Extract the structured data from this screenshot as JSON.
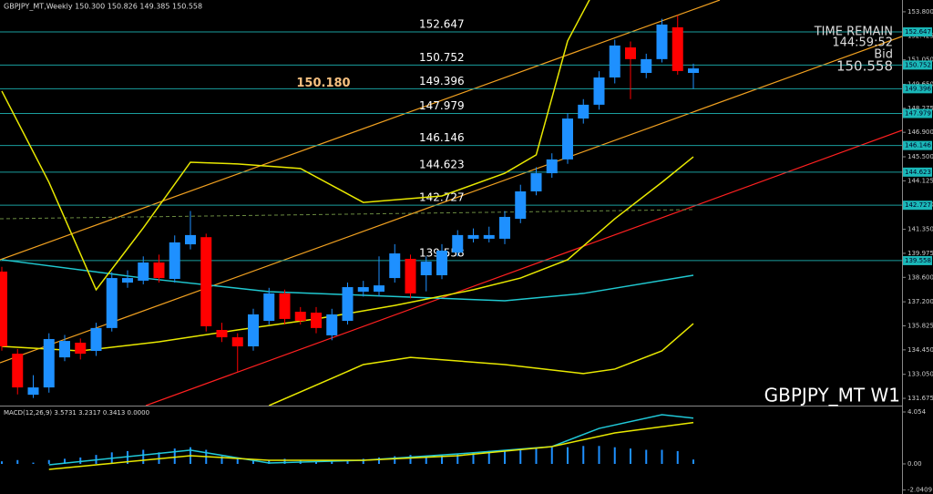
{
  "chart_data": [
    {
      "type": "candlestick",
      "title": "GBPJPY_MT,Weekly 150.300 150.826 149.385 150.558",
      "watermark": "GBPJPY_MT W1",
      "info": [
        "TIME REMAIN",
        "144:59:52",
        "Bid"
      ],
      "bid": 150.558,
      "up_color": "#1e90ff",
      "down_color": "#ff0000",
      "level_color": "#1a9e9e",
      "open": [
        138.93,
        134.23,
        131.88,
        132.3,
        134.02,
        134.86,
        134.39,
        135.7,
        138.3,
        138.41,
        139.45,
        138.51,
        140.49,
        140.9,
        135.59,
        135.17,
        134.65,
        136.11,
        137.68,
        136.63,
        136.58,
        135.28,
        136.11,
        137.78,
        137.78,
        138.56,
        139.66,
        138.72,
        138.72,
        140.02,
        140.81,
        140.81,
        140.81,
        141.95,
        143.52,
        144.56,
        145.35,
        147.69,
        148.48,
        150.04,
        151.76,
        150.3,
        151.09,
        152.91,
        150.3
      ],
      "high": [
        139.2,
        134.5,
        133.0,
        135.4,
        135.3,
        135.1,
        136.0,
        138.9,
        139.0,
        139.8,
        139.9,
        141.0,
        142.4,
        141.1,
        136.0,
        135.4,
        136.8,
        138.0,
        137.9,
        136.9,
        136.9,
        136.8,
        138.3,
        138.4,
        139.8,
        140.5,
        139.9,
        139.8,
        140.5,
        141.3,
        141.4,
        141.5,
        142.4,
        143.9,
        144.9,
        145.7,
        148.0,
        148.8,
        150.4,
        152.2,
        152.1,
        151.4,
        153.4,
        153.6,
        150.826
      ],
      "low": [
        134.4,
        131.9,
        131.7,
        132.0,
        133.8,
        133.9,
        134.1,
        135.5,
        138.0,
        138.2,
        138.3,
        138.3,
        140.2,
        135.5,
        134.9,
        133.2,
        134.4,
        135.9,
        135.9,
        135.9,
        135.4,
        135.0,
        135.9,
        137.5,
        137.5,
        138.3,
        137.4,
        137.8,
        138.5,
        139.8,
        140.6,
        140.6,
        140.5,
        141.7,
        143.3,
        144.3,
        145.1,
        147.4,
        148.2,
        149.7,
        148.8,
        150.0,
        150.9,
        150.2,
        149.385
      ],
      "close": [
        134.65,
        132.3,
        132.3,
        135.07,
        134.96,
        134.23,
        135.7,
        138.56,
        138.56,
        139.45,
        138.56,
        140.6,
        141.02,
        135.8,
        135.17,
        134.65,
        136.48,
        137.68,
        136.22,
        136.11,
        135.7,
        136.48,
        138.04,
        138.04,
        138.14,
        139.97,
        137.68,
        139.5,
        140.13,
        141.02,
        141.02,
        141.02,
        142.06,
        143.52,
        144.56,
        145.35,
        147.69,
        148.48,
        150.04,
        151.87,
        151.09,
        151.09,
        153.07,
        150.41,
        150.558
      ],
      "levels": [
        152.647,
        150.752,
        149.396,
        147.979,
        146.146,
        144.623,
        142.727,
        139.558
      ],
      "annotation": {
        "value": 150.18,
        "label": "150.180"
      },
      "overlays": [
        {
          "color": "#20c8d0",
          "x": [
            0,
            9,
            17,
            26,
            32,
            37,
            44
          ],
          "values": [
            139.61,
            138.56,
            137.78,
            137.47,
            137.26,
            137.68,
            138.72
          ]
        },
        {
          "color": "#e8e800",
          "x": [
            0,
            5,
            10,
            15,
            20,
            25,
            30,
            33,
            36,
            39,
            42,
            44
          ],
          "values": [
            134.65,
            134.39,
            134.91,
            135.59,
            136.22,
            136.99,
            137.89,
            138.56,
            139.61,
            141.95,
            144.04,
            145.5
          ]
        },
        {
          "color": "#e8e800",
          "x": [
            0,
            3,
            6,
            9,
            12,
            15,
            19,
            23,
            28,
            32,
            34,
            36,
            38
          ],
          "values": [
            149.26,
            144.04,
            137.89,
            141.43,
            145.19,
            145.09,
            144.83,
            142.89,
            143.26,
            144.56,
            145.61,
            152.13,
            155.52
          ]
        },
        {
          "color": "#e8e800",
          "x": [
            17,
            21,
            23,
            26,
            32,
            37,
            39,
            42,
            44
          ],
          "values": [
            131.26,
            132.82,
            133.61,
            134.02,
            133.61,
            133.09,
            133.35,
            134.39,
            135.95
          ]
        }
      ],
      "ylim": [
        131.26,
        154.37
      ],
      "yticks": [
        {
          "value": 153.8,
          "label": "153.800"
        },
        152.425,
        {
          "value": 151.05,
          "label": "151.050"
        },
        {
          "value": 149.65,
          "label": "149.650"
        },
        148.275,
        {
          "value": 146.9,
          "label": "146.900"
        },
        {
          "value": 145.5,
          "label": "145.500"
        },
        144.125,
        {
          "value": 142.75,
          "label": "142.750"
        },
        {
          "value": 141.35,
          "label": "141.350"
        },
        139.975,
        {
          "value": 138.6,
          "label": "138.600"
        },
        {
          "value": 137.2,
          "label": "137.200"
        },
        135.825,
        {
          "value": 134.45,
          "label": "134.450"
        },
        {
          "value": 133.05,
          "label": "133.050"
        },
        131.675
      ]
    },
    {
      "type": "bar",
      "title": "MACD(12,26,9) 3.5731 3.2317 0.3413 0.0000",
      "color": "#1e90ff",
      "values": [
        0.2,
        0.3,
        0.1,
        0.3,
        0.4,
        0.5,
        0.7,
        0.9,
        1.0,
        1.1,
        0.9,
        1.2,
        1.3,
        1.1,
        0.6,
        0.4,
        0.3,
        0.3,
        0.4,
        0.3,
        0.2,
        0.2,
        0.3,
        0.4,
        0.5,
        0.6,
        0.7,
        0.6,
        0.7,
        0.8,
        0.9,
        1.0,
        1.0,
        1.1,
        1.2,
        1.3,
        1.3,
        1.4,
        1.4,
        1.3,
        1.2,
        1.1,
        1.1,
        1.0,
        0.3413
      ],
      "series": [
        {
          "color": "#20c8d8",
          "x": [
            3,
            12,
            17,
            23,
            29,
            35,
            38,
            42,
            44
          ],
          "values": [
            -0.07,
            1.07,
            0.07,
            0.28,
            0.78,
            1.35,
            2.77,
            3.84,
            3.57
          ]
        },
        {
          "color": "#e8e800",
          "x": [
            3,
            12,
            17,
            23,
            29,
            35,
            39,
            44
          ],
          "values": [
            -0.43,
            0.64,
            0.28,
            0.28,
            0.64,
            1.35,
            2.42,
            3.23
          ]
        }
      ],
      "ylim": [
        -2.35,
        4.41
      ],
      "yticks": [
        4.054,
        {
          "value": 0,
          "label": "0.00"
        },
        -2.0409
      ]
    }
  ]
}
